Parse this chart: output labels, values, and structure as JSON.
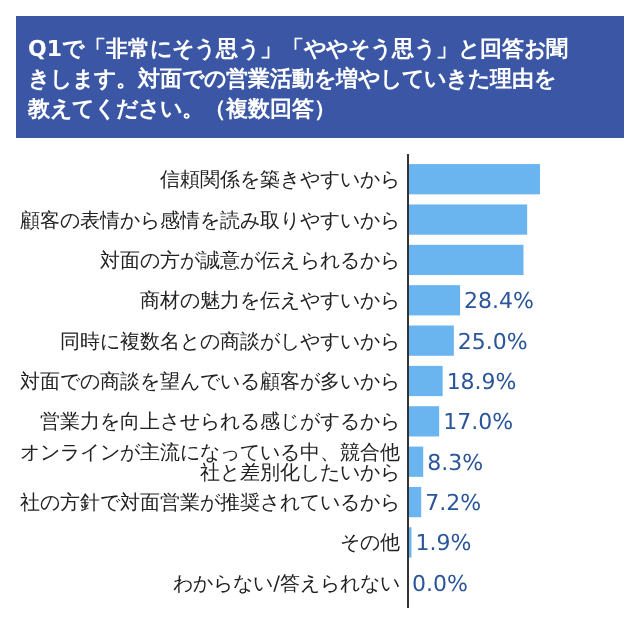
{
  "chart_data": {
    "type": "bar",
    "orientation": "horizontal",
    "title": "Q1で「非常にそう思う」「ややそう思う」と回答お聞きします。対面での営業活動を増やしていきた理由を教えてください。（複数回答）",
    "categories": [
      "信頼関係を築きやすいから",
      "顧客の表情から感情を読み取りやすいから",
      "対面の方が誠意が伝えられるから",
      "商材の魅力を伝えやすいから",
      "同時に複数名との商談がしやすいから",
      "対面での商談を望んでいる顧客が多いから",
      "営業力を向上させられる感じがするから",
      "オンラインが主流になっている中、競合他社と差別化したいから",
      "社の方針で対面営業が推奨されているから",
      "その他",
      "わからない/答えられない"
    ],
    "values": [
      72,
      65,
      63,
      28.4,
      25.0,
      18.9,
      17.0,
      8.3,
      7.2,
      1.9,
      0.0
    ],
    "value_labels": [
      null,
      null,
      null,
      "28.4%",
      "25.0%",
      "18.9%",
      "17.0%",
      "8.3%",
      "7.2%",
      "1.9%",
      "0.0%"
    ],
    "color": "#6ab4f0"
  }
}
